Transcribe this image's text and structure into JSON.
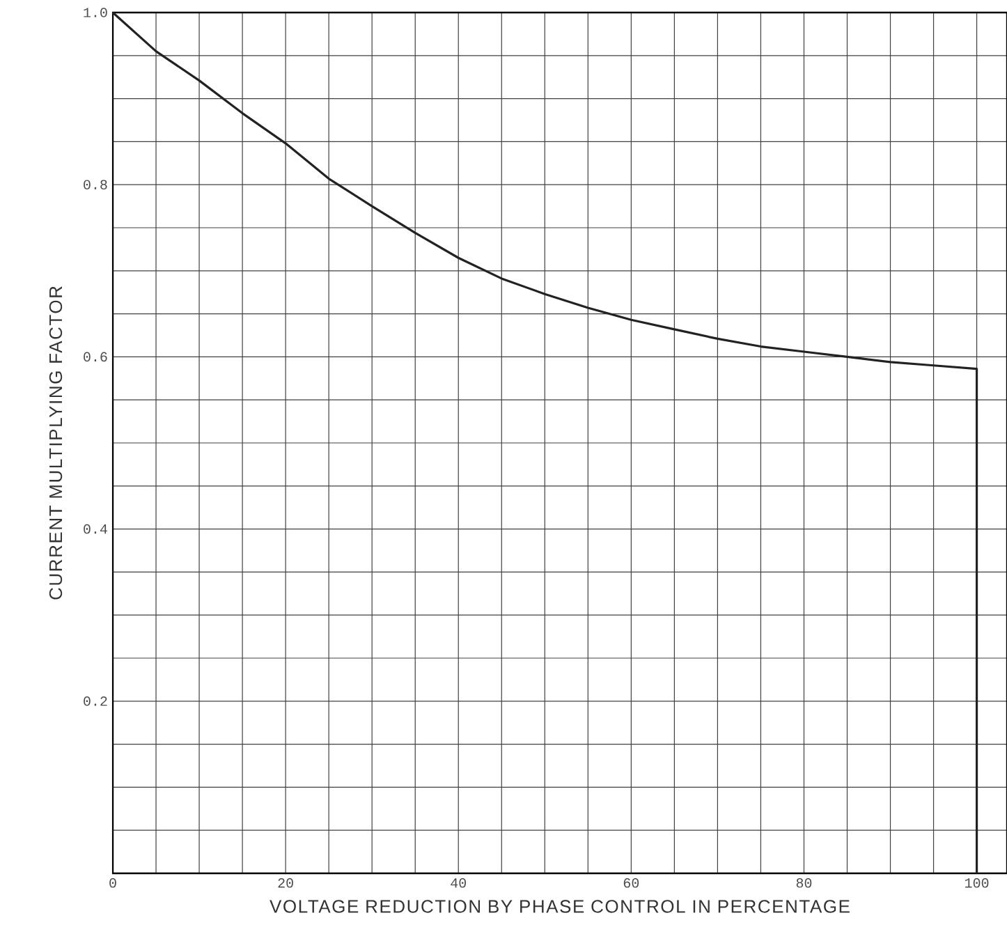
{
  "chart_data": {
    "type": "line",
    "xlabel": "VOLTAGE REDUCTION BY PHASE CONTROL IN PERCENTAGE",
    "ylabel": "CURRENT MULTIPLYING FACTOR",
    "xlim": [
      0,
      103.5
    ],
    "ylim": [
      0,
      1
    ],
    "xticks": [
      0,
      20,
      40,
      60,
      80,
      100
    ],
    "yticks": [
      {
        "value": 0,
        "label": null
      },
      0.2,
      0.4,
      0.6,
      0.8,
      {
        "value": 1,
        "label": "1.0"
      }
    ],
    "grid": true,
    "marker": "none",
    "line_style": "solid",
    "series": [
      {
        "color": "#222222",
        "x": [
          0,
          5,
          10,
          15,
          20,
          25,
          30,
          35,
          40,
          45,
          50,
          55,
          60,
          65,
          70,
          75,
          80,
          85,
          90,
          95,
          100,
          100
        ],
        "values": [
          1.0,
          0.955,
          0.921,
          0.883,
          0.848,
          0.807,
          0.775,
          0.744,
          0.715,
          0.691,
          0.673,
          0.657,
          0.643,
          0.632,
          0.621,
          0.612,
          0.606,
          0.6,
          0.594,
          0.59,
          0.586,
          0
        ]
      }
    ]
  }
}
